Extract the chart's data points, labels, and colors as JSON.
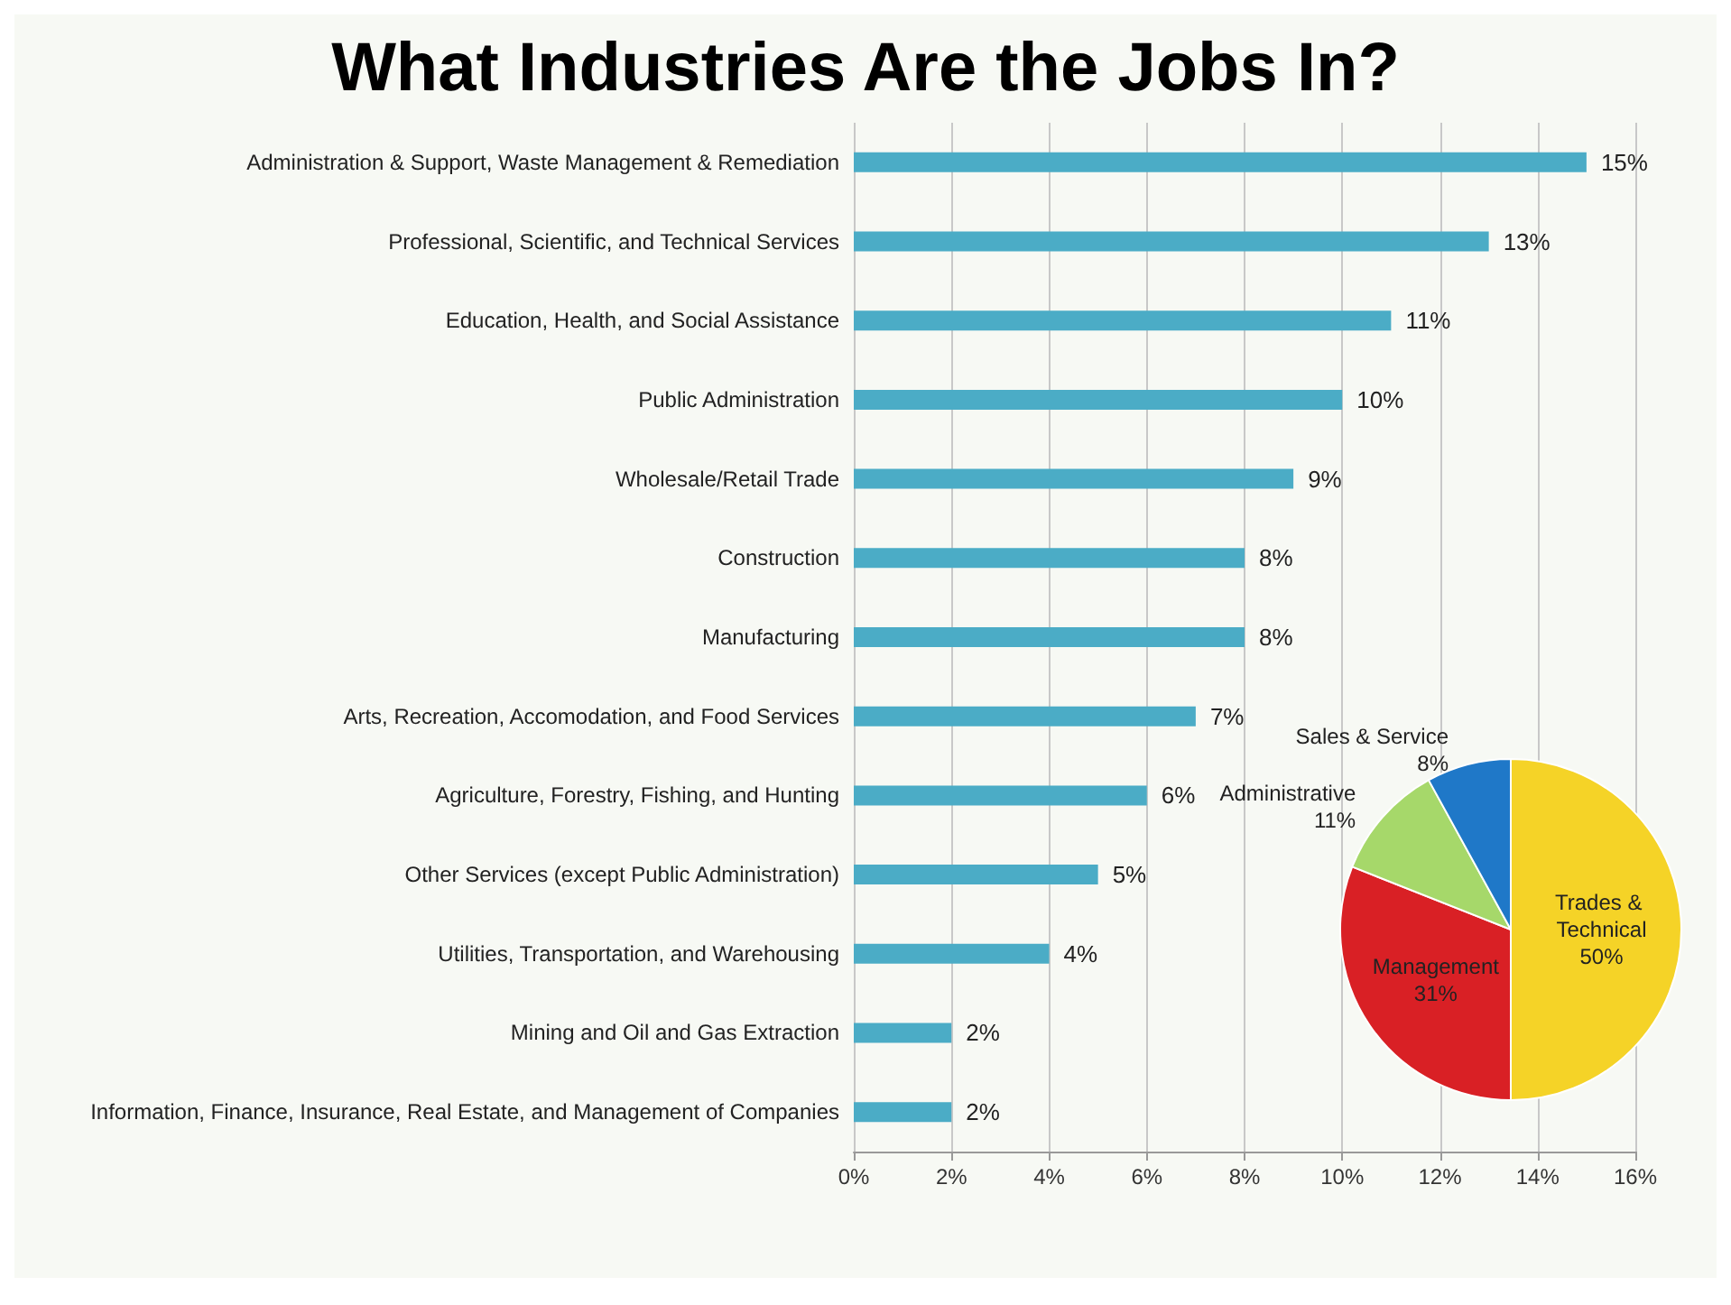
{
  "chart_data": [
    {
      "type": "bar",
      "title": "What Industries Are the Jobs In?",
      "orientation": "horizontal",
      "categories": [
        "Administration & Support, Waste Management & Remediation",
        "Professional, Scientific, and Technical Services",
        "Education, Health, and Social Assistance",
        "Public Administration",
        "Wholesale/Retail Trade",
        "Construction",
        "Manufacturing",
        "Arts, Recreation, Accomodation, and Food Services",
        "Agriculture, Forestry, Fishing, and Hunting",
        "Other Services (except Public Administration)",
        "Utilities, Transportation, and Warehousing",
        "Mining and Oil and Gas Extraction",
        "Information, Finance, Insurance, Real Estate, and Management of Companies"
      ],
      "values": [
        15,
        13,
        11,
        10,
        9,
        8,
        8,
        7,
        6,
        5,
        4,
        2,
        2
      ],
      "value_labels": [
        "15%",
        "13%",
        "11%",
        "10%",
        "9%",
        "8%",
        "8%",
        "7%",
        "6%",
        "5%",
        "4%",
        "2%",
        "2%"
      ],
      "color": "#4bacc6",
      "xlim": [
        0,
        16
      ],
      "xticks": [
        {
          "value": 0,
          "label": "0%"
        },
        {
          "value": 2,
          "label": "2%"
        },
        {
          "value": 4,
          "label": "4%"
        },
        {
          "value": 6,
          "label": "6%"
        },
        {
          "value": 8,
          "label": "8%"
        },
        {
          "value": 10,
          "label": "10%"
        },
        {
          "value": 12,
          "label": "12%"
        },
        {
          "value": 14,
          "label": "14%"
        },
        {
          "value": 16,
          "label": "16%"
        }
      ],
      "grid": "x",
      "legend": false
    },
    {
      "type": "pie",
      "categories": [
        "Trades & Technical",
        "Management",
        "Administrative",
        "Sales & Service"
      ],
      "values": [
        50,
        31,
        11,
        8
      ],
      "value_labels": [
        "50%",
        "31%",
        "11%",
        "8%"
      ],
      "colors": [
        "#f5d327",
        "#d92025",
        "#a6d86a",
        "#1f78c8"
      ],
      "legend": false
    }
  ]
}
